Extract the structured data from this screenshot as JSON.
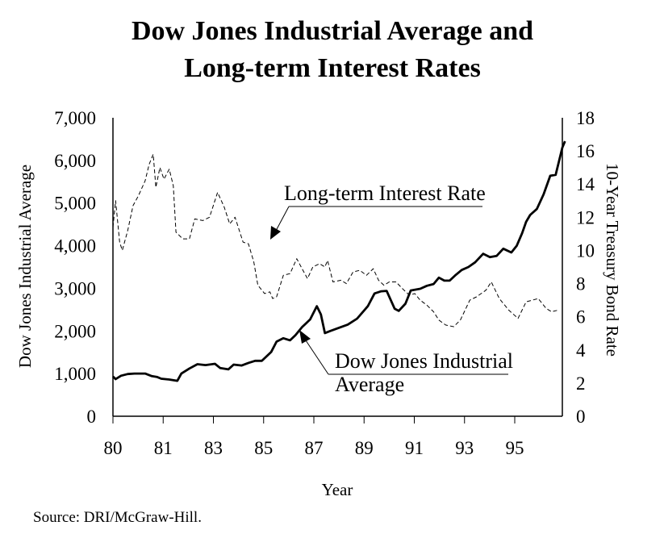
{
  "chart_data": {
    "type": "line",
    "title": [
      "Dow Jones Industrial Average and",
      "Long-term Interest Rates"
    ],
    "xlabel": "Year",
    "ylabel_left": "Dow Jones Industrial Average",
    "ylabel_right": "10-Year Treasury Bond Rate",
    "x_range": [
      1980,
      1996.75
    ],
    "x_ticks": [
      {
        "value": 1980,
        "label": "80"
      },
      {
        "value": 1981.5,
        "label": "81"
      },
      {
        "value": 1983,
        "label": "83"
      },
      {
        "value": 1985,
        "label": "85"
      },
      {
        "value": 1987,
        "label": "87"
      },
      {
        "value": 1989,
        "label": "89"
      },
      {
        "value": 1991,
        "label": "91"
      },
      {
        "value": 1993,
        "label": "93"
      },
      {
        "value": 1995,
        "label": "95"
      }
    ],
    "ylim_left": [
      0,
      7000
    ],
    "yticks_left": [
      "0",
      "1,000",
      "2,000",
      "3,000",
      "4,000",
      "5,000",
      "6,000",
      "7,000"
    ],
    "ylim_right": [
      0,
      18
    ],
    "yticks_right": [
      "0",
      "2",
      "4",
      "6",
      "8",
      "10",
      "12",
      "14",
      "16",
      "18"
    ],
    "grid": false,
    "series": [
      {
        "name": "Long-term Interest Rate",
        "axis": "right",
        "style": "dashed",
        "x": [
          1980.0,
          1980.1,
          1980.25,
          1980.35,
          1980.55,
          1980.75,
          1980.95,
          1981.2,
          1981.35,
          1981.5,
          1981.6,
          1981.75,
          1981.9,
          1982.1,
          1982.25,
          1982.35,
          1982.6,
          1982.85,
          1983.05,
          1983.35,
          1983.6,
          1983.9,
          1984.15,
          1984.35,
          1984.55,
          1984.85,
          1985.05,
          1985.25,
          1985.4,
          1985.65,
          1985.85,
          1985.95,
          1986.1,
          1986.35,
          1986.6,
          1986.85,
          1987.05,
          1987.25,
          1987.45,
          1987.7,
          1987.9,
          1988.0,
          1988.2,
          1988.5,
          1988.7,
          1988.95,
          1989.2,
          1989.45,
          1989.7,
          1989.9,
          1990.1,
          1990.3,
          1990.55,
          1990.85,
          1991.05,
          1991.25,
          1991.45,
          1991.7,
          1991.95,
          1992.15,
          1992.4,
          1992.7,
          1992.95,
          1993.3,
          1993.55,
          1993.9,
          1994.1,
          1994.4,
          1994.75,
          1995.1,
          1995.4,
          1995.85,
          1996.15,
          1996.35,
          1996.6
        ],
        "values": [
          11.4,
          13.0,
          10.5,
          10.0,
          11.2,
          12.7,
          13.3,
          14.2,
          15.2,
          15.8,
          13.8,
          15.0,
          14.3,
          14.9,
          13.9,
          11.1,
          10.7,
          10.7,
          11.9,
          11.8,
          12.0,
          13.5,
          12.6,
          11.6,
          12.0,
          10.5,
          10.4,
          9.3,
          7.9,
          7.4,
          7.5,
          7.1,
          7.2,
          8.5,
          8.6,
          9.5,
          8.9,
          8.3,
          9.0,
          9.2,
          9.0,
          9.4,
          8.1,
          8.2,
          8.0,
          8.7,
          8.8,
          8.5,
          8.9,
          8.2,
          7.9,
          8.1,
          8.1,
          7.6,
          7.3,
          7.4,
          7.0,
          6.7,
          6.3,
          5.8,
          5.5,
          5.4,
          5.8,
          7.0,
          7.2,
          7.6,
          8.1,
          7.1,
          6.4,
          5.9,
          6.9,
          7.1,
          6.5,
          6.3,
          6.4
        ]
      },
      {
        "name": "Dow Jones Industrial Average",
        "axis": "left",
        "style": "solid",
        "x": [
          1980.0,
          1980.1,
          1980.3,
          1980.55,
          1980.8,
          1981.2,
          1981.45,
          1981.65,
          1981.8,
          1982.1,
          1982.4,
          1982.55,
          1982.85,
          1983.15,
          1983.45,
          1983.8,
          1984.0,
          1984.3,
          1984.5,
          1984.8,
          1985.05,
          1985.3,
          1985.55,
          1985.9,
          1986.1,
          1986.35,
          1986.6,
          1986.8,
          1987.05,
          1987.35,
          1987.6,
          1987.75,
          1987.9,
          1988.1,
          1988.45,
          1988.75,
          1989.1,
          1989.5,
          1989.75,
          1990.0,
          1990.2,
          1990.5,
          1990.65,
          1990.9,
          1991.1,
          1991.45,
          1991.7,
          1991.95,
          1992.15,
          1992.35,
          1992.55,
          1992.75,
          1993.0,
          1993.25,
          1993.5,
          1993.8,
          1994.05,
          1994.3,
          1994.55,
          1994.85,
          1995.05,
          1995.25,
          1995.4,
          1995.55,
          1995.8,
          1996.05,
          1996.3,
          1996.5,
          1996.75,
          1996.85
        ],
        "values": [
          930,
          870,
          950,
          990,
          1000,
          1000,
          940,
          920,
          880,
          860,
          830,
          1000,
          1120,
          1220,
          1200,
          1230,
          1130,
          1100,
          1210,
          1190,
          1250,
          1300,
          1300,
          1510,
          1750,
          1830,
          1780,
          1900,
          2090,
          2270,
          2580,
          2390,
          1950,
          2000,
          2080,
          2150,
          2290,
          2580,
          2880,
          2930,
          2940,
          2520,
          2470,
          2640,
          2950,
          2990,
          3060,
          3100,
          3250,
          3180,
          3180,
          3300,
          3430,
          3500,
          3610,
          3810,
          3730,
          3760,
          3930,
          3840,
          4000,
          4290,
          4560,
          4720,
          4860,
          5200,
          5640,
          5660,
          6300,
          6450
        ]
      }
    ],
    "annotations": [
      {
        "text": "Long-term Interest Rate",
        "points_to": "Long-term Interest Rate"
      },
      {
        "text": [
          "Dow Jones Industrial",
          "Average"
        ],
        "points_to": "Dow Jones Industrial Average"
      }
    ],
    "source": "Source:  DRI/McGraw-Hill."
  }
}
